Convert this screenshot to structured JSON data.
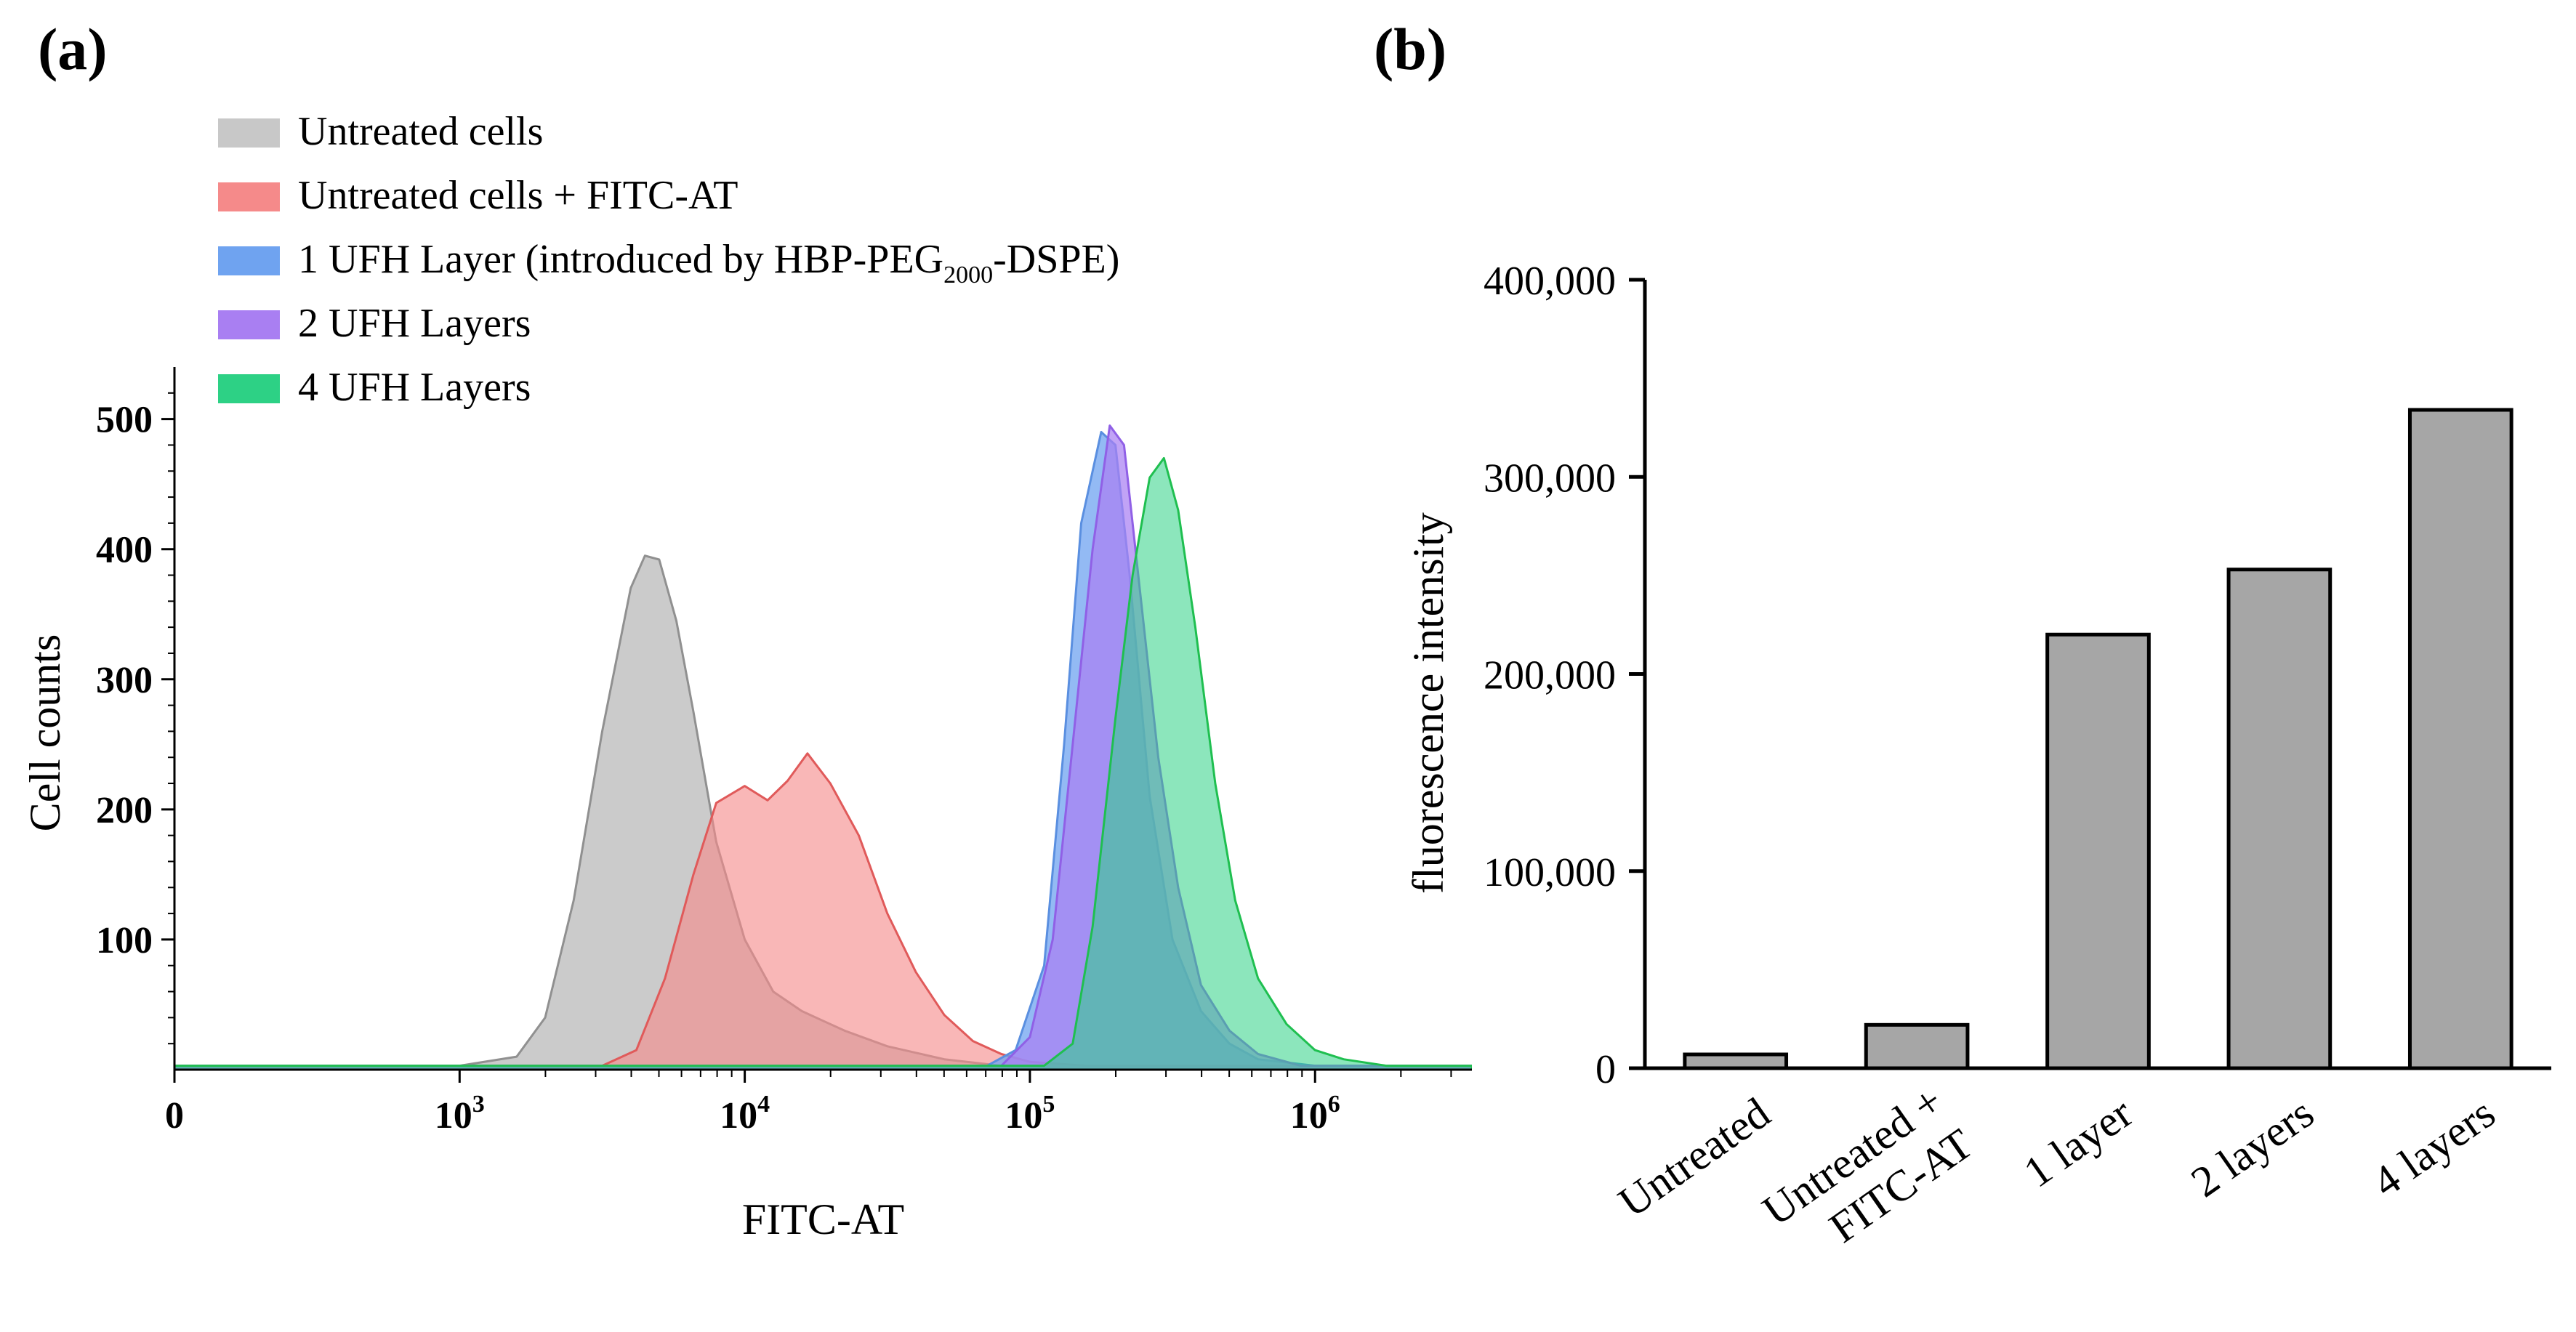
{
  "chart_data": [
    {
      "type": "area",
      "panel_label": "(a)",
      "xlabel": "FITC-AT",
      "ylabel": "Cell counts",
      "x_scale": "log",
      "x_unit": "log10 FITC-AT",
      "xlim": [
        2.0,
        6.55
      ],
      "ylim": [
        0,
        540
      ],
      "x_ticks": [
        {
          "value": 2.0,
          "label": "0",
          "base": "",
          "exp": ""
        },
        {
          "value": 3.0,
          "label": "",
          "base": "10",
          "exp": "3"
        },
        {
          "value": 4.0,
          "label": "",
          "base": "10",
          "exp": "4"
        },
        {
          "value": 5.0,
          "label": "",
          "base": "10",
          "exp": "5"
        },
        {
          "value": 6.0,
          "label": "",
          "base": "10",
          "exp": "6"
        }
      ],
      "y_ticks": [
        {
          "value": 100,
          "label": "100"
        },
        {
          "value": 200,
          "label": "200"
        },
        {
          "value": 300,
          "label": "300"
        },
        {
          "value": 400,
          "label": "400"
        },
        {
          "value": 500,
          "label": "500"
        }
      ],
      "legend": [
        {
          "text": "Untreated cells",
          "sub": "",
          "tail": "",
          "color": "#c8c8c8"
        },
        {
          "text": "Untreated cells + FITC-AT",
          "sub": "",
          "tail": "",
          "color": "#f58a8a"
        },
        {
          "text": "1 UFH Layer (introduced by HBP-PEG",
          "sub": "2000",
          "tail": "-DSPE)",
          "color": "#6fa3f0"
        },
        {
          "text": "2 UFH Layers",
          "sub": "",
          "tail": "",
          "color": "#a97ff2"
        },
        {
          "text": "4 UFH Layers",
          "sub": "",
          "tail": "",
          "color": "#2dd185"
        }
      ],
      "series": [
        {
          "name": "Untreated cells",
          "fill": "#c8c8c8",
          "stroke": "#909090",
          "fill_opacity": 0.95,
          "x": [
            2.0,
            3.0,
            3.2,
            3.3,
            3.4,
            3.5,
            3.6,
            3.65,
            3.7,
            3.76,
            3.82,
            3.9,
            4.0,
            4.1,
            4.2,
            4.35,
            4.5,
            4.7,
            4.9,
            6.55
          ],
          "y": [
            3,
            3,
            10,
            40,
            130,
            260,
            370,
            395,
            392,
            345,
            275,
            175,
            100,
            60,
            45,
            30,
            18,
            8,
            3,
            3
          ]
        },
        {
          "name": "Untreated cells + FITC-AT",
          "fill": "#f58a8a",
          "stroke": "#e05a5a",
          "fill_opacity": 0.62,
          "x": [
            2.0,
            3.5,
            3.62,
            3.72,
            3.82,
            3.9,
            4.0,
            4.08,
            4.15,
            4.22,
            4.3,
            4.4,
            4.5,
            4.6,
            4.7,
            4.8,
            4.9,
            5.0,
            5.2,
            6.55
          ],
          "y": [
            3,
            3,
            15,
            70,
            150,
            205,
            218,
            207,
            222,
            243,
            220,
            180,
            120,
            75,
            42,
            22,
            12,
            6,
            3,
            3
          ]
        },
        {
          "name": "1 UFH Layer (introduced by HBP-PEG2000-DSPE)",
          "fill": "#6fa3f0",
          "stroke": "#5a8fe0",
          "fill_opacity": 0.75,
          "x": [
            2.0,
            4.85,
            4.95,
            5.05,
            5.12,
            5.18,
            5.25,
            5.3,
            5.35,
            5.42,
            5.5,
            5.6,
            5.7,
            5.8,
            6.0,
            6.55
          ],
          "y": [
            3,
            3,
            15,
            80,
            250,
            420,
            490,
            480,
            380,
            210,
            100,
            45,
            20,
            8,
            3,
            3
          ]
        },
        {
          "name": "2 UFH Layers",
          "fill": "#a97ff2",
          "stroke": "#9060e6",
          "fill_opacity": 0.72,
          "x": [
            2.0,
            4.9,
            5.0,
            5.08,
            5.15,
            5.22,
            5.28,
            5.33,
            5.38,
            5.45,
            5.52,
            5.6,
            5.7,
            5.8,
            5.95,
            6.55
          ],
          "y": [
            3,
            3,
            25,
            100,
            250,
            400,
            495,
            480,
            380,
            240,
            140,
            65,
            30,
            12,
            3,
            3
          ]
        },
        {
          "name": "4 UFH Layers",
          "fill": "#2dd185",
          "stroke": "#1fbf50",
          "fill_opacity": 0.55,
          "x": [
            2.0,
            5.05,
            5.15,
            5.22,
            5.3,
            5.36,
            5.42,
            5.47,
            5.52,
            5.58,
            5.65,
            5.72,
            5.8,
            5.9,
            6.0,
            6.1,
            6.25,
            6.55
          ],
          "y": [
            3,
            3,
            20,
            110,
            270,
            380,
            455,
            470,
            430,
            340,
            220,
            130,
            70,
            35,
            15,
            8,
            3,
            3
          ]
        }
      ],
      "overlap_fill": "#a07575",
      "overlap_fill_blue": "#5b8fd2"
    },
    {
      "type": "bar",
      "panel_label": "(b)",
      "xlabel": "",
      "ylabel": "fluorescence intensity",
      "ylim": [
        0,
        400000
      ],
      "bar_color": "#a6a6a6",
      "bar_stroke": "#000000",
      "y_ticks": [
        {
          "value": 0,
          "label": "0"
        },
        {
          "value": 100000,
          "label": "100,000"
        },
        {
          "value": 200000,
          "label": "200,000"
        },
        {
          "value": 300000,
          "label": "300,000"
        },
        {
          "value": 400000,
          "label": "400,000"
        }
      ],
      "categories": [
        {
          "lines": [
            "Untreated"
          ]
        },
        {
          "lines": [
            "Untreated +",
            "FITC-AT"
          ]
        },
        {
          "lines": [
            "1 layer"
          ]
        },
        {
          "lines": [
            "2  layers"
          ]
        },
        {
          "lines": [
            "4 layers"
          ]
        }
      ],
      "values": [
        7000,
        22000,
        220000,
        253000,
        334000
      ]
    }
  ]
}
